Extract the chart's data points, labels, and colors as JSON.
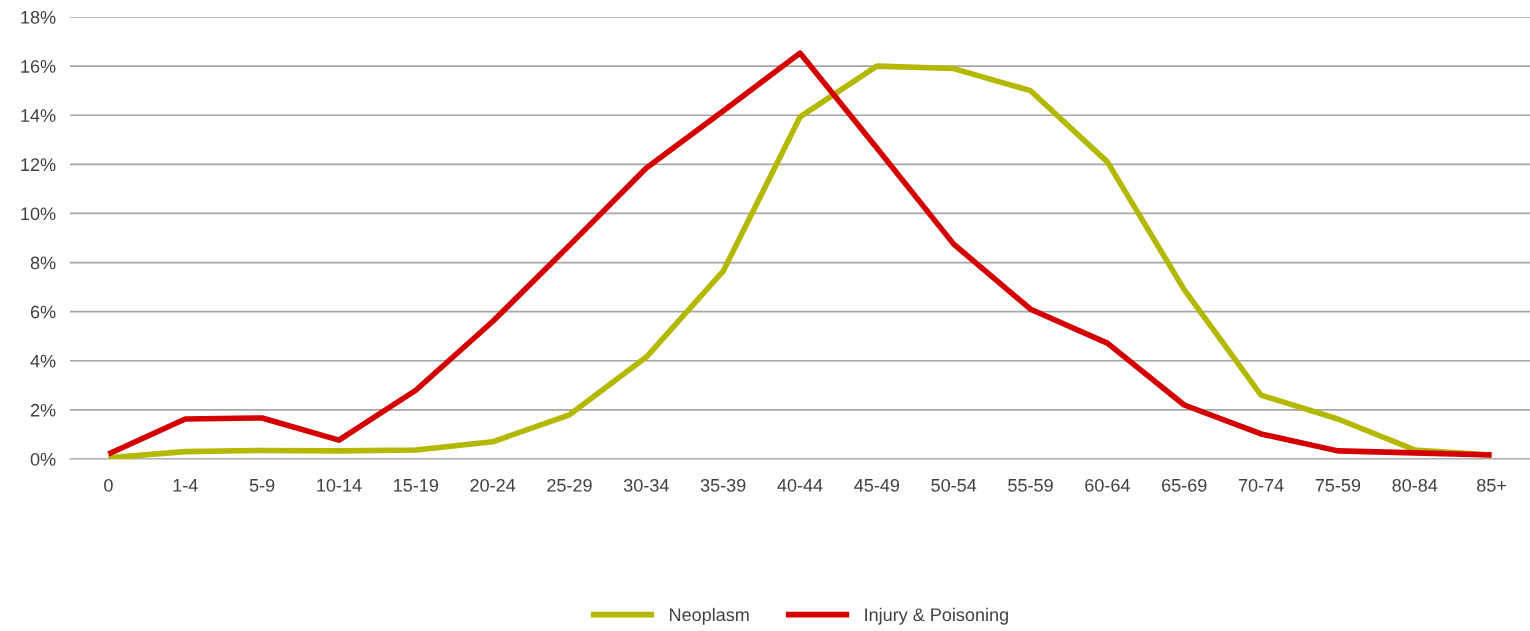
{
  "chart_data": {
    "type": "line",
    "categories": [
      "0",
      "1-4",
      "5-9",
      "10-14",
      "15-19",
      "20-24",
      "25-29",
      "30-34",
      "35-39",
      "40-44",
      "45-49",
      "50-54",
      "55-59",
      "60-64",
      "65-69",
      "70-74",
      "75-59",
      "80-84",
      "85+"
    ],
    "series": [
      {
        "name": "Neoplasm",
        "color": "#b5b800",
        "values": [
          0.05,
          0.3,
          0.35,
          0.33,
          0.37,
          0.7,
          1.8,
          4.15,
          7.65,
          13.93,
          16.0,
          15.9,
          15.0,
          12.1,
          6.9,
          2.6,
          1.63,
          0.37,
          0.16
        ]
      },
      {
        "name": "Injury & Poisoning",
        "color": "#d40000",
        "values": [
          0.2,
          1.63,
          1.67,
          0.77,
          2.8,
          5.6,
          8.7,
          11.85,
          14.17,
          16.53,
          12.67,
          8.75,
          6.1,
          4.72,
          2.2,
          1.02,
          0.33,
          0.25,
          0.16
        ]
      }
    ],
    "ylim": [
      0,
      18
    ],
    "yticks": [
      {
        "value": 0,
        "label": "0%"
      },
      {
        "value": 2,
        "label": "2%"
      },
      {
        "value": 4,
        "label": "4%"
      },
      {
        "value": 6,
        "label": "6%"
      },
      {
        "value": 8,
        "label": "8%"
      },
      {
        "value": 10,
        "label": "10%"
      },
      {
        "value": 12,
        "label": "12%"
      },
      {
        "value": 14,
        "label": "14%"
      },
      {
        "value": 16,
        "label": "16%"
      },
      {
        "value": 18,
        "label": "18%"
      }
    ],
    "grid": "y",
    "legend": "bottom",
    "marker": "none",
    "line_style": "solid"
  }
}
